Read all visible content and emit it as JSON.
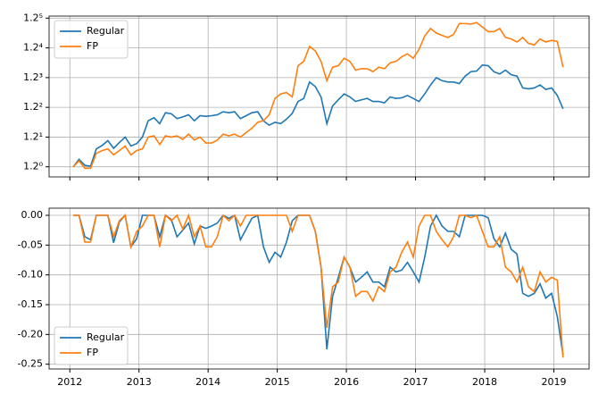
{
  "chart_data": [
    {
      "type": "line",
      "yscale": "log",
      "grid": true,
      "legend": "upper left",
      "x": [
        2012.05,
        2012.133,
        2012.217,
        2012.3,
        2012.383,
        2012.467,
        2012.55,
        2012.633,
        2012.717,
        2012.8,
        2012.883,
        2012.967,
        2013.05,
        2013.133,
        2013.217,
        2013.3,
        2013.383,
        2013.467,
        2013.55,
        2013.633,
        2013.717,
        2013.8,
        2013.883,
        2013.967,
        2014.05,
        2014.133,
        2014.217,
        2014.3,
        2014.383,
        2014.467,
        2014.55,
        2014.633,
        2014.717,
        2014.8,
        2014.883,
        2014.967,
        2015.05,
        2015.133,
        2015.217,
        2015.3,
        2015.383,
        2015.467,
        2015.55,
        2015.633,
        2015.717,
        2015.8,
        2015.883,
        2015.967,
        2016.05,
        2016.133,
        2016.217,
        2016.3,
        2016.383,
        2016.467,
        2016.55,
        2016.633,
        2016.717,
        2016.8,
        2016.883,
        2016.967,
        2017.05,
        2017.133,
        2017.217,
        2017.3,
        2017.383,
        2017.467,
        2017.55,
        2017.633,
        2017.717,
        2017.8,
        2017.883,
        2017.967,
        2018.05,
        2018.133,
        2018.217,
        2018.3,
        2018.383,
        2018.467,
        2018.55,
        2018.633,
        2018.717,
        2018.8,
        2018.883,
        2018.967,
        2019.05,
        2019.133
      ],
      "series": [
        {
          "name": "Regular",
          "color": "#1f77b4",
          "values": [
            1.0,
            1.047,
            1.009,
            1.004,
            1.116,
            1.14,
            1.174,
            1.12,
            1.161,
            1.2,
            1.136,
            1.153,
            1.2,
            1.326,
            1.351,
            1.303,
            1.393,
            1.384,
            1.344,
            1.358,
            1.376,
            1.326,
            1.368,
            1.363,
            1.368,
            1.376,
            1.402,
            1.393,
            1.402,
            1.344,
            1.368,
            1.393,
            1.402,
            1.326,
            1.291,
            1.314,
            1.303,
            1.339,
            1.388,
            1.493,
            1.521,
            1.682,
            1.636,
            1.535,
            1.303,
            1.453,
            1.508,
            1.564,
            1.535,
            1.493,
            1.508,
            1.521,
            1.493,
            1.493,
            1.48,
            1.535,
            1.521,
            1.527,
            1.549,
            1.521,
            1.493,
            1.564,
            1.652,
            1.728,
            1.696,
            1.682,
            1.682,
            1.666,
            1.744,
            1.792,
            1.799,
            1.866,
            1.859,
            1.792,
            1.766,
            1.809,
            1.759,
            1.744,
            1.622,
            1.613,
            1.622,
            1.652,
            1.607,
            1.622,
            1.549,
            1.427
          ]
        },
        {
          "name": "FP",
          "color": "#ff7f0e",
          "values": [
            1.0,
            1.037,
            0.991,
            0.991,
            1.086,
            1.105,
            1.116,
            1.076,
            1.105,
            1.136,
            1.076,
            1.105,
            1.116,
            1.2,
            1.209,
            1.147,
            1.209,
            1.2,
            1.209,
            1.183,
            1.222,
            1.178,
            1.2,
            1.157,
            1.157,
            1.178,
            1.222,
            1.209,
            1.222,
            1.2,
            1.234,
            1.267,
            1.314,
            1.326,
            1.376,
            1.521,
            1.564,
            1.577,
            1.535,
            1.859,
            1.909,
            2.092,
            2.036,
            1.909,
            1.696,
            1.842,
            1.859,
            1.946,
            1.909,
            1.809,
            1.825,
            1.825,
            1.792,
            1.842,
            1.825,
            1.892,
            1.909,
            1.963,
            1.999,
            1.946,
            2.055,
            2.231,
            2.335,
            2.271,
            2.239,
            2.21,
            2.252,
            2.407,
            2.407,
            2.399,
            2.422,
            2.356,
            2.291,
            2.291,
            2.335,
            2.21,
            2.19,
            2.15,
            2.21,
            2.132,
            2.111,
            2.19,
            2.15,
            2.171,
            2.158,
            1.842
          ]
        }
      ],
      "xlim": [
        2011.7,
        2019.51
      ],
      "xticks": [
        2012,
        2013,
        2014,
        2015,
        2016,
        2017,
        2018,
        2019
      ],
      "ylim": [
        0.94,
        2.52
      ],
      "yticks": [
        {
          "value": 1,
          "label": "1.2⁰"
        },
        {
          "value": 1.2,
          "label": "1.2¹"
        },
        {
          "value": 1.44,
          "label": "1.2²"
        },
        {
          "value": 1.728,
          "label": "1.2³"
        },
        {
          "value": 2.0736,
          "label": "1.2⁴"
        },
        {
          "value": 2.48832,
          "label": "1.2⁵"
        }
      ]
    },
    {
      "type": "line",
      "grid": true,
      "legend": "lower left",
      "x": [
        2012.05,
        2012.133,
        2012.217,
        2012.3,
        2012.383,
        2012.467,
        2012.55,
        2012.633,
        2012.717,
        2012.8,
        2012.883,
        2012.967,
        2013.05,
        2013.133,
        2013.217,
        2013.3,
        2013.383,
        2013.467,
        2013.55,
        2013.633,
        2013.717,
        2013.8,
        2013.883,
        2013.967,
        2014.05,
        2014.133,
        2014.217,
        2014.3,
        2014.383,
        2014.467,
        2014.55,
        2014.633,
        2014.717,
        2014.8,
        2014.883,
        2014.967,
        2015.05,
        2015.133,
        2015.217,
        2015.3,
        2015.383,
        2015.467,
        2015.55,
        2015.633,
        2015.717,
        2015.8,
        2015.883,
        2015.967,
        2016.05,
        2016.133,
        2016.217,
        2016.3,
        2016.383,
        2016.467,
        2016.55,
        2016.633,
        2016.717,
        2016.8,
        2016.883,
        2016.967,
        2017.05,
        2017.133,
        2017.217,
        2017.3,
        2017.383,
        2017.467,
        2017.55,
        2017.633,
        2017.717,
        2017.8,
        2017.883,
        2017.967,
        2018.05,
        2018.133,
        2018.217,
        2018.3,
        2018.383,
        2018.467,
        2018.55,
        2018.633,
        2018.717,
        2018.8,
        2018.883,
        2018.967,
        2019.05,
        2019.133
      ],
      "series": [
        {
          "name": "Regular",
          "color": "#1f77b4",
          "values": [
            0,
            0,
            -0.036,
            -0.041,
            0,
            0,
            0,
            -0.046,
            -0.011,
            0,
            -0.053,
            -0.039,
            0,
            0,
            0,
            -0.036,
            0,
            -0.007,
            -0.036,
            -0.025,
            -0.013,
            -0.048,
            -0.018,
            -0.022,
            -0.018,
            -0.013,
            0,
            -0.005,
            0,
            -0.041,
            -0.023,
            -0.005,
            0,
            -0.053,
            -0.079,
            -0.062,
            -0.07,
            -0.045,
            -0.009,
            0,
            0,
            0,
            -0.027,
            -0.087,
            -0.225,
            -0.136,
            -0.104,
            -0.07,
            -0.087,
            -0.112,
            -0.104,
            -0.095,
            -0.112,
            -0.112,
            -0.12,
            -0.087,
            -0.095,
            -0.092,
            -0.079,
            -0.095,
            -0.112,
            -0.07,
            -0.018,
            0,
            -0.018,
            -0.027,
            -0.027,
            -0.036,
            0,
            0,
            0,
            0,
            -0.004,
            -0.039,
            -0.053,
            -0.03,
            -0.057,
            -0.065,
            -0.131,
            -0.136,
            -0.131,
            -0.115,
            -0.139,
            -0.131,
            -0.17,
            -0.235
          ]
        },
        {
          "name": "FP",
          "color": "#ff7f0e",
          "values": [
            0,
            0,
            -0.045,
            -0.045,
            0,
            0,
            0,
            -0.036,
            -0.009,
            0,
            -0.053,
            -0.027,
            -0.018,
            0,
            0,
            -0.053,
            0,
            -0.009,
            0,
            -0.023,
            0,
            -0.036,
            -0.018,
            -0.053,
            -0.053,
            -0.036,
            0,
            -0.009,
            0,
            -0.018,
            0,
            0,
            0,
            0,
            0,
            0,
            0,
            0,
            -0.027,
            0,
            0,
            0,
            -0.027,
            -0.087,
            -0.189,
            -0.12,
            -0.112,
            -0.07,
            -0.087,
            -0.136,
            -0.128,
            -0.128,
            -0.144,
            -0.12,
            -0.128,
            -0.095,
            -0.087,
            -0.062,
            -0.045,
            -0.07,
            -0.018,
            0,
            0,
            -0.027,
            -0.041,
            -0.053,
            -0.036,
            0,
            0,
            -0.004,
            0,
            -0.027,
            -0.053,
            -0.053,
            -0.036,
            -0.087,
            -0.095,
            -0.112,
            -0.087,
            -0.12,
            -0.128,
            -0.095,
            -0.112,
            -0.104,
            -0.109,
            -0.239
          ]
        }
      ],
      "xlim": [
        2011.7,
        2019.51
      ],
      "xticks": [
        2012,
        2013,
        2014,
        2015,
        2016,
        2017,
        2018,
        2019
      ],
      "ylim": [
        -0.258,
        0.012
      ],
      "yticks": [
        {
          "value": 0,
          "label": "0.00"
        },
        -0.05,
        {
          "value": -0.1,
          "label": "-0.10"
        },
        -0.15,
        {
          "value": -0.2,
          "label": "-0.20"
        },
        -0.25
      ]
    }
  ]
}
